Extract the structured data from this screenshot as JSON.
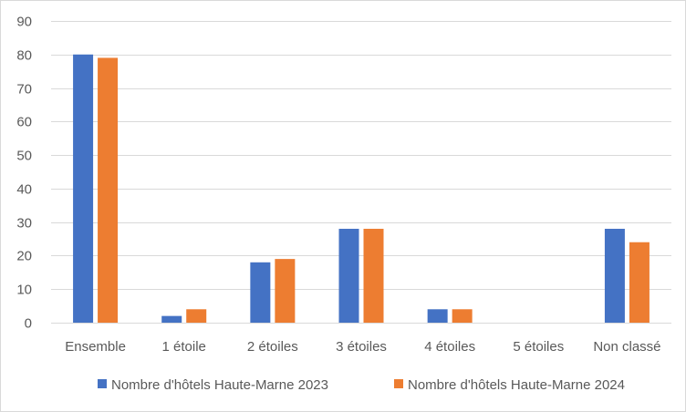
{
  "chart_data": {
    "type": "bar",
    "categories": [
      "Ensemble",
      "1 étoile",
      "2 étoiles",
      "3 étoiles",
      "4 étoiles",
      "5 étoiles",
      "Non classé"
    ],
    "series": [
      {
        "name": "Nombre d'hôtels Haute-Marne  2023",
        "values": [
          80,
          2,
          18,
          28,
          4,
          0,
          28
        ],
        "color": "#4472c4"
      },
      {
        "name": "Nombre d'hôtels Haute-Marne  2024",
        "values": [
          79,
          4,
          19,
          28,
          4,
          0,
          24
        ],
        "color": "#ed7d31"
      }
    ],
    "ylim": [
      0,
      90
    ],
    "yticks": [
      0,
      10,
      20,
      30,
      40,
      50,
      60,
      70,
      80,
      90
    ],
    "grid": true,
    "legend_position": "bottom"
  }
}
